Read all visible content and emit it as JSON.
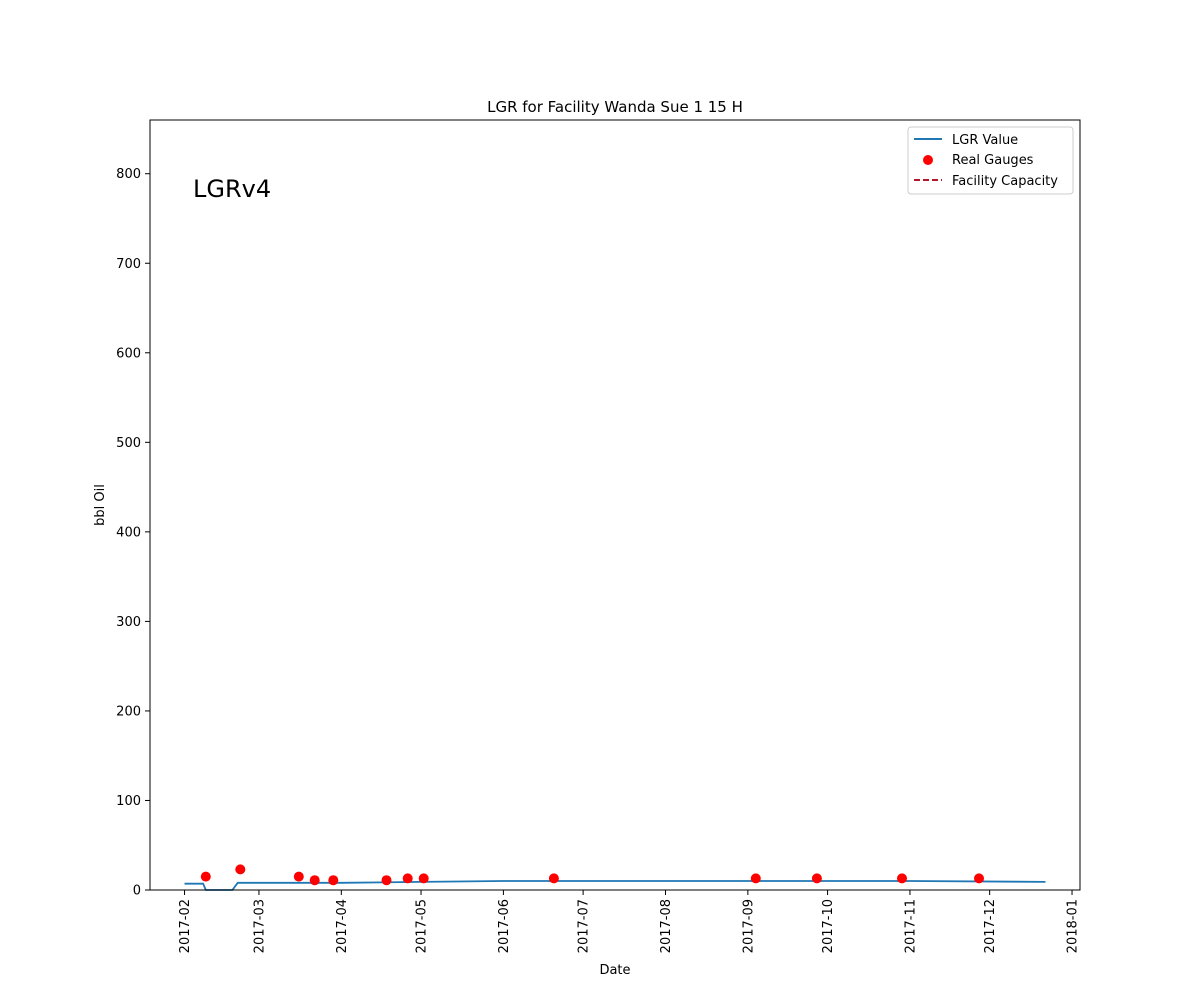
{
  "chart_data": {
    "type": "line",
    "title": "LGR for Facility Wanda Sue 1 15 H",
    "xlabel": "Date",
    "ylabel": "bbl Oil",
    "annotation": "LGRv4",
    "x_axis": {
      "type": "date",
      "range": [
        "2017-01-19",
        "2018-01-04"
      ]
    },
    "ylim": [
      0,
      860
    ],
    "yticks": [
      0,
      100,
      200,
      300,
      400,
      500,
      600,
      700,
      800
    ],
    "xticks": [
      "2017-02",
      "2017-03",
      "2017-04",
      "2017-05",
      "2017-06",
      "2017-07",
      "2017-08",
      "2017-09",
      "2017-10",
      "2017-11",
      "2017-12",
      "2018-01"
    ],
    "grid": false,
    "legend_position": "top-right",
    "series": [
      {
        "name": "LGR Value",
        "kind": "line",
        "color": "#1f77b4",
        "points": [
          [
            "2017-02-01",
            7
          ],
          [
            "2017-02-08",
            7
          ],
          [
            "2017-02-09",
            0
          ],
          [
            "2017-02-19",
            0
          ],
          [
            "2017-02-21",
            8
          ],
          [
            "2017-03-01",
            8
          ],
          [
            "2017-04-01",
            8
          ],
          [
            "2017-05-01",
            9
          ],
          [
            "2017-06-01",
            10
          ],
          [
            "2017-07-01",
            10
          ],
          [
            "2017-08-01",
            10
          ],
          [
            "2017-09-01",
            10
          ],
          [
            "2017-10-01",
            10
          ],
          [
            "2017-11-01",
            10
          ],
          [
            "2017-12-22",
            9
          ]
        ]
      },
      {
        "name": "Real Gauges",
        "kind": "scatter",
        "color": "#ff0000",
        "points": [
          [
            "2017-02-09",
            15
          ],
          [
            "2017-02-22",
            23
          ],
          [
            "2017-03-16",
            15
          ],
          [
            "2017-03-22",
            11
          ],
          [
            "2017-03-29",
            11
          ],
          [
            "2017-04-18",
            11
          ],
          [
            "2017-04-26",
            13
          ],
          [
            "2017-05-02",
            13
          ],
          [
            "2017-06-20",
            13
          ],
          [
            "2017-09-04",
            13
          ],
          [
            "2017-09-27",
            13
          ],
          [
            "2017-10-29",
            13
          ],
          [
            "2017-11-27",
            13
          ]
        ]
      },
      {
        "name": "Facility Capacity",
        "kind": "dashed-line",
        "color": "#b2182b",
        "points": []
      }
    ]
  }
}
